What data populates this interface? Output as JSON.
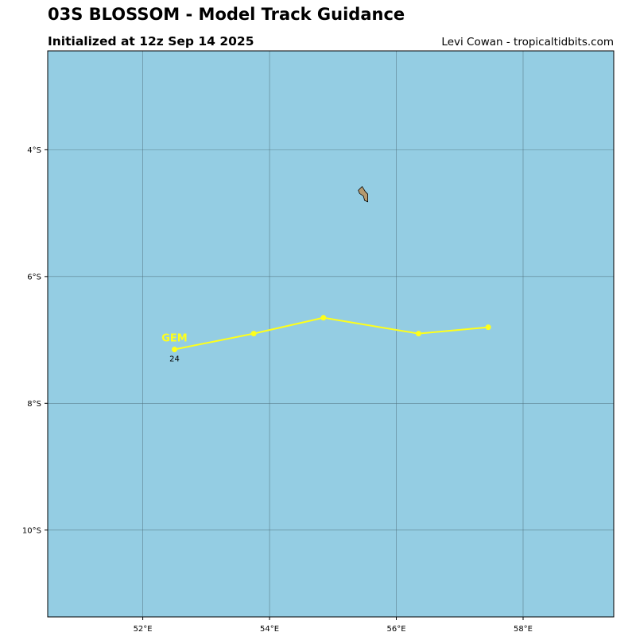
{
  "header": {
    "title": "03S BLOSSOM - Model Track Guidance",
    "subtitle": "Initialized at 12z Sep 14 2025",
    "credit": "Levi Cowan - tropicaltidbits.com"
  },
  "map": {
    "lon_range": [
      50.5,
      59.43
    ],
    "lat_range": [
      -11.37,
      -2.44
    ],
    "ocean_color": "#94cde3",
    "land_color": "#b59a6f",
    "grid_color": "#4d6d78",
    "lon_ticks": [
      {
        "value": 52,
        "label": "52°E"
      },
      {
        "value": 54,
        "label": "54°E"
      },
      {
        "value": 56,
        "label": "56°E"
      },
      {
        "value": 58,
        "label": "58°E"
      }
    ],
    "lat_ticks": [
      {
        "value": -4,
        "label": "4°S"
      },
      {
        "value": -6,
        "label": "6°S"
      },
      {
        "value": -8,
        "label": "8°S"
      },
      {
        "value": -10,
        "label": "10°S"
      }
    ],
    "island": [
      [
        55.4,
        -4.64
      ],
      [
        55.46,
        -4.58
      ],
      [
        55.51,
        -4.66
      ],
      [
        55.55,
        -4.7
      ],
      [
        55.55,
        -4.82
      ],
      [
        55.5,
        -4.8
      ],
      [
        55.48,
        -4.73
      ],
      [
        55.42,
        -4.69
      ]
    ]
  },
  "tracks": [
    {
      "model": "GEM",
      "color": "#ffff1a",
      "points": [
        {
          "lon": 57.45,
          "lat": -6.8
        },
        {
          "lon": 56.35,
          "lat": -6.9
        },
        {
          "lon": 54.85,
          "lat": -6.65
        },
        {
          "lon": 53.75,
          "lat": -6.9
        },
        {
          "lon": 52.5,
          "lat": -7.15
        }
      ],
      "end_label": "24"
    }
  ]
}
